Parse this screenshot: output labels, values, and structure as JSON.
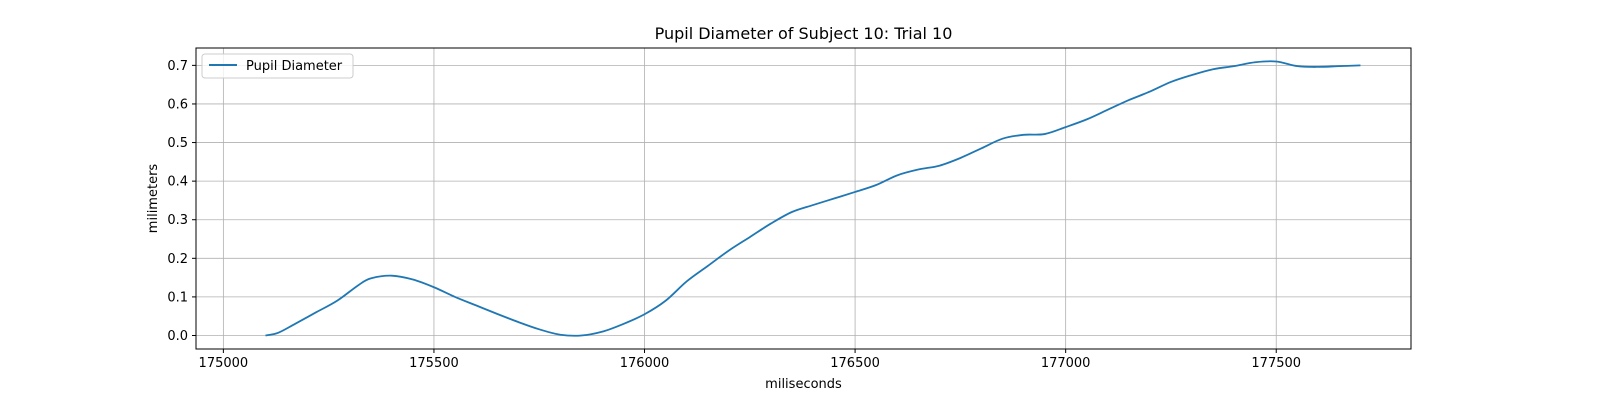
{
  "chart_data": {
    "type": "line",
    "title": "Pupil Diameter of Subject 10: Trial 10",
    "xlabel": "miliseconds",
    "ylabel": "milimeters",
    "xlim": [
      174935,
      177820
    ],
    "ylim": [
      -0.035,
      0.745
    ],
    "xticks": [
      175000,
      175500,
      176000,
      176500,
      177000,
      177500
    ],
    "yticks": [
      0.0,
      0.1,
      0.2,
      0.3,
      0.4,
      0.5,
      0.6,
      0.7
    ],
    "ytick_labels": [
      "0.0",
      "0.1",
      "0.2",
      "0.3",
      "0.4",
      "0.5",
      "0.6",
      "0.7"
    ],
    "grid": true,
    "legend": {
      "position": "upper-left",
      "entries": [
        "Pupil Diameter"
      ]
    },
    "colors": {
      "series": "#1f77b4",
      "grid": "#b0b0b0"
    },
    "series": [
      {
        "name": "Pupil Diameter",
        "x": [
          175100,
          175130,
          175170,
          175220,
          175270,
          175320,
          175350,
          175400,
          175450,
          175500,
          175550,
          175600,
          175650,
          175700,
          175750,
          175800,
          175850,
          175900,
          175950,
          176000,
          176050,
          176100,
          176150,
          176200,
          176250,
          176300,
          176350,
          176400,
          176450,
          176500,
          176550,
          176600,
          176650,
          176700,
          176750,
          176800,
          176850,
          176900,
          176950,
          177000,
          177050,
          177100,
          177150,
          177200,
          177250,
          177300,
          177350,
          177400,
          177450,
          177500,
          177550,
          177600,
          177650,
          177700
        ],
        "y": [
          0.0,
          0.007,
          0.03,
          0.06,
          0.09,
          0.13,
          0.148,
          0.155,
          0.145,
          0.125,
          0.1,
          0.078,
          0.056,
          0.035,
          0.016,
          0.002,
          0.0,
          0.01,
          0.03,
          0.055,
          0.09,
          0.14,
          0.18,
          0.22,
          0.255,
          0.29,
          0.32,
          0.338,
          0.355,
          0.372,
          0.39,
          0.415,
          0.43,
          0.44,
          0.46,
          0.485,
          0.51,
          0.52,
          0.522,
          0.54,
          0.56,
          0.585,
          0.61,
          0.632,
          0.657,
          0.675,
          0.69,
          0.698,
          0.708,
          0.71,
          0.698,
          0.696,
          0.698,
          0.7
        ]
      }
    ]
  }
}
